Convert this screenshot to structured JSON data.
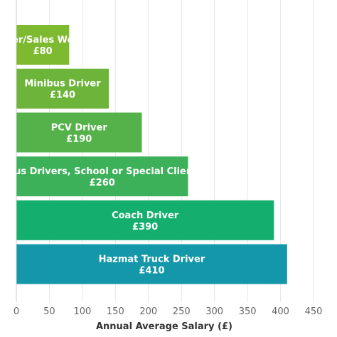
{
  "chart_data": {
    "type": "bar",
    "orientation": "horizontal",
    "title": "",
    "xlabel": "Annual Average Salary (£)",
    "ylabel": "",
    "xlim": [
      0,
      450
    ],
    "x_ticks": [
      0,
      50,
      100,
      150,
      200,
      250,
      300,
      350,
      400,
      450
    ],
    "grid": true,
    "legend": "none",
    "bars": [
      {
        "category": "Driver/Sales Worker",
        "value": 80,
        "value_label": "£80",
        "color": "#7dba2f"
      },
      {
        "category": "Minibus Driver",
        "value": 140,
        "value_label": "£140",
        "color": "#6cb43a"
      },
      {
        "category": "PCV Driver",
        "value": 190,
        "value_label": "£190",
        "color": "#55b24a"
      },
      {
        "category": "Bus Drivers, School or Special Client",
        "value": 260,
        "value_label": "£260",
        "color": "#3db159"
      },
      {
        "category": "Coach Driver",
        "value": 390,
        "value_label": "£390",
        "color": "#14af6e"
      },
      {
        "category": "Hazmat Truck Driver",
        "value": 410,
        "value_label": "£410",
        "color": "#1497a8"
      }
    ]
  }
}
